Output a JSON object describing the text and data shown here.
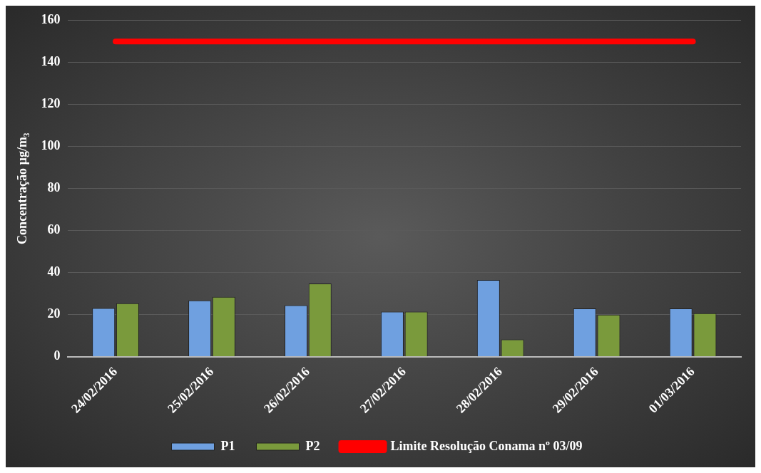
{
  "chart_data": {
    "type": "bar",
    "ylabel": "Concentração µg/m₃",
    "categories": [
      "24/02/2016",
      "25/02/2016",
      "26/02/2016",
      "27/02/2016",
      "28/02/2016",
      "29/02/2016",
      "01/03/2016"
    ],
    "series": [
      {
        "name": "P1",
        "color": "#6fa0e0",
        "values": [
          23.1,
          26.8,
          24.5,
          21.4,
          36.5,
          23,
          23
        ]
      },
      {
        "name": "P2",
        "color": "#7a9a3c",
        "values": [
          25.4,
          28.5,
          34.8,
          21.4,
          8.2,
          20,
          20.7
        ]
      },
      {
        "name": "Limite Resolução Conama nº 03/09",
        "type": "line",
        "color": "#ff0000",
        "values": [
          150,
          150,
          150,
          150,
          150,
          150,
          150
        ]
      }
    ],
    "ylim": [
      0,
      160
    ],
    "yticks": [
      0,
      20,
      40,
      60,
      80,
      100,
      120,
      140,
      160
    ],
    "grid": "y",
    "legend": "bottom",
    "marker": "none"
  }
}
